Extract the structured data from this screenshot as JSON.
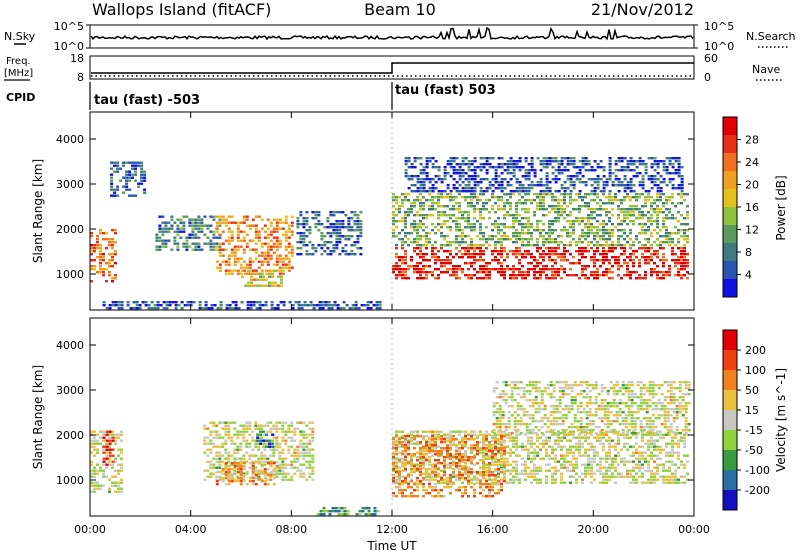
{
  "header": {
    "site": "Wallops Island (fitACF)",
    "beam": "Beam 10",
    "date": "21/Nov/2012"
  },
  "strip_labels": {
    "nsky": "N.Sky",
    "nsky_ticks": [
      "10^5",
      "10^0"
    ],
    "nsearch": "N.Search",
    "nsearch_ticks": [
      "10^5",
      "10^0"
    ],
    "freq": "Freq.",
    "freq_unit": "[MHz]",
    "freq_ticks": [
      "18",
      "8"
    ],
    "nave": "Nave",
    "nave_ticks": [
      "60",
      "0"
    ],
    "cpid": "CPID",
    "cpid_left": "tau (fast) -503",
    "cpid_right": "tau (fast) 503"
  },
  "chart_data": [
    {
      "type": "heatmap",
      "name": "power-panel",
      "ylabel": "Slant Range [km]",
      "yticks": [
        1000,
        2000,
        3000,
        4000
      ],
      "ylim": [
        200,
        4600
      ],
      "xlim_hours": [
        0,
        24
      ],
      "colorbar_label": "Power [dB]",
      "colorbar_ticks": [
        "4",
        "8",
        "12",
        "16",
        "20",
        "24",
        "28"
      ],
      "colorbar_colors": [
        "#1010e0",
        "#2a55b0",
        "#3f7a80",
        "#5a9a5a",
        "#8fc23f",
        "#e2c020",
        "#f0a020",
        "#f07020",
        "#e83018",
        "#e00000"
      ],
      "regions": [
        {
          "t0": 0.0,
          "t1": 1.0,
          "r0": 800,
          "r1": 2000,
          "lvl": 0.75
        },
        {
          "t0": 0.8,
          "t1": 2.2,
          "r0": 2700,
          "r1": 3500,
          "lvl": 0.2
        },
        {
          "t0": 2.6,
          "t1": 5.2,
          "r0": 1500,
          "r1": 2300,
          "lvl": 0.25
        },
        {
          "t0": 5.0,
          "t1": 8.0,
          "r0": 1000,
          "r1": 2300,
          "lvl": 0.7
        },
        {
          "t0": 6.0,
          "t1": 7.6,
          "r0": 750,
          "r1": 1100,
          "lvl": 0.55
        },
        {
          "t0": 8.2,
          "t1": 10.8,
          "r0": 1400,
          "r1": 2400,
          "lvl": 0.2
        },
        {
          "t0": 0.5,
          "t1": 11.5,
          "r0": 250,
          "r1": 400,
          "lvl": 0.15
        },
        {
          "t0": 12.0,
          "t1": 23.8,
          "r0": 900,
          "r1": 1600,
          "lvl": 0.9
        },
        {
          "t0": 12.0,
          "t1": 23.8,
          "r0": 1600,
          "r1": 2800,
          "lvl": 0.4
        },
        {
          "t0": 12.5,
          "t1": 23.5,
          "r0": 2800,
          "r1": 3600,
          "lvl": 0.15
        }
      ]
    },
    {
      "type": "heatmap",
      "name": "velocity-panel",
      "ylabel": "Slant Range [km]",
      "yticks": [
        1000,
        2000,
        3000,
        4000
      ],
      "ylim": [
        200,
        4600
      ],
      "xlim_hours": [
        0,
        24
      ],
      "xticks": [
        "00:00",
        "04:00",
        "08:00",
        "12:00",
        "16:00",
        "20:00",
        "00:00"
      ],
      "xlabel": "Time UT",
      "colorbar_label": "Velocity [m s^-1]",
      "colorbar_ticks": [
        "200",
        "100",
        "50",
        "15",
        "-15",
        "-50",
        "-100",
        "-200"
      ],
      "colorbar_colors": [
        "#1010c0",
        "#2a70a0",
        "#3a9a40",
        "#8fd23f",
        "#c8c8c0",
        "#e8c040",
        "#f08020",
        "#f04010",
        "#e00000"
      ],
      "regions": [
        {
          "t0": 0.0,
          "t1": 1.2,
          "r0": 700,
          "r1": 2100,
          "lvl": 0.5
        },
        {
          "t0": 0.5,
          "t1": 0.9,
          "r0": 1300,
          "r1": 2100,
          "lvl": 0.95
        },
        {
          "t0": 4.5,
          "t1": 8.8,
          "r0": 1000,
          "r1": 2300,
          "lvl": 0.5
        },
        {
          "t0": 5.0,
          "t1": 7.5,
          "r0": 900,
          "r1": 1400,
          "lvl": 0.7
        },
        {
          "t0": 6.6,
          "t1": 7.2,
          "r0": 1700,
          "r1": 2100,
          "lvl": 0.2
        },
        {
          "t0": 9.0,
          "t1": 11.5,
          "r0": 250,
          "r1": 400,
          "lvl": 0.3
        },
        {
          "t0": 12.0,
          "t1": 23.8,
          "r0": 900,
          "r1": 2100,
          "lvl": 0.5
        },
        {
          "t0": 12.0,
          "t1": 16.5,
          "r0": 600,
          "r1": 2000,
          "lvl": 0.7
        },
        {
          "t0": 16.0,
          "t1": 23.8,
          "r0": 2000,
          "r1": 3200,
          "lvl": 0.5
        }
      ]
    }
  ]
}
